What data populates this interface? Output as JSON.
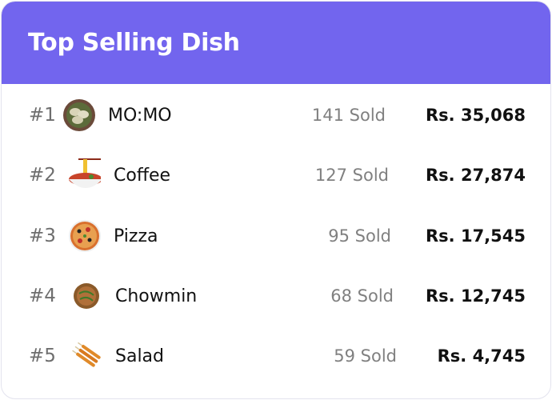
{
  "header": {
    "title": "Top Selling Dish",
    "color": "#7265ee"
  },
  "dishes": [
    {
      "rank": "#1",
      "name": "MO:MO",
      "sold": "141 Sold",
      "price": "Rs. 35,068",
      "icon": "momo-plate-icon"
    },
    {
      "rank": "#2",
      "name": "Coffee",
      "sold": "127 Sold",
      "price": "Rs. 27,874",
      "icon": "noodle-bowl-icon"
    },
    {
      "rank": "#3",
      "name": "Pizza",
      "sold": "95 Sold",
      "price": "Rs. 17,545",
      "icon": "pizza-icon"
    },
    {
      "rank": "#4",
      "name": "Chowmin",
      "sold": "68 Sold",
      "price": "Rs. 12,745",
      "icon": "chowmin-icon"
    },
    {
      "rank": "#5",
      "name": "Salad",
      "sold": "59 Sold",
      "price": "Rs. 4,745",
      "icon": "corn-dog-icon"
    }
  ]
}
